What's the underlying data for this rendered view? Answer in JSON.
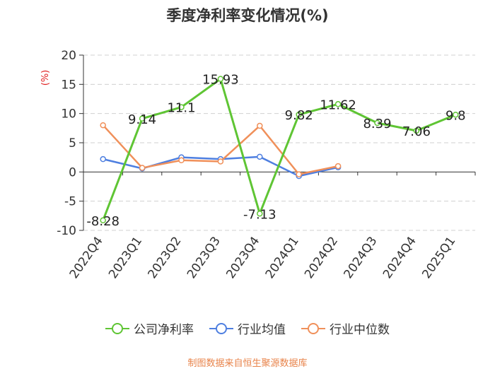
{
  "chart_data": {
    "type": "line",
    "title": "季度净利率变化情况(%)",
    "ylabel": "(%)",
    "xlabel": "",
    "categories": [
      "2022Q4",
      "2023Q1",
      "2023Q2",
      "2023Q3",
      "2023Q4",
      "2024Q1",
      "2024Q2",
      "2024Q3",
      "2024Q4",
      "2025Q1"
    ],
    "ylim": [
      -10,
      20
    ],
    "yticks": [
      -10,
      -5,
      0,
      5,
      10,
      15,
      20
    ],
    "grid": true,
    "legend_position": "bottom",
    "series": [
      {
        "name": "公司净利率",
        "color": "#5fc534",
        "values": [
          -8.28,
          9.14,
          11.1,
          15.93,
          -7.13,
          9.82,
          11.62,
          8.39,
          7.06,
          9.8
        ],
        "labels": [
          "-8.28",
          "9.14",
          "11.1",
          "15.93",
          "-7.13",
          "9.82",
          "11.62",
          "8.39",
          "7.06",
          "9.8"
        ]
      },
      {
        "name": "行业均值",
        "color": "#4e7fe0",
        "values": [
          2.2,
          0.6,
          2.5,
          2.2,
          2.6,
          -0.7,
          0.8,
          null,
          null,
          null
        ]
      },
      {
        "name": "行业中位数",
        "color": "#f0905a",
        "values": [
          8.0,
          0.7,
          2.0,
          1.8,
          7.9,
          -0.4,
          1.0,
          null,
          null,
          null
        ]
      }
    ]
  },
  "source": "制图数据来自恒生聚源数据库"
}
